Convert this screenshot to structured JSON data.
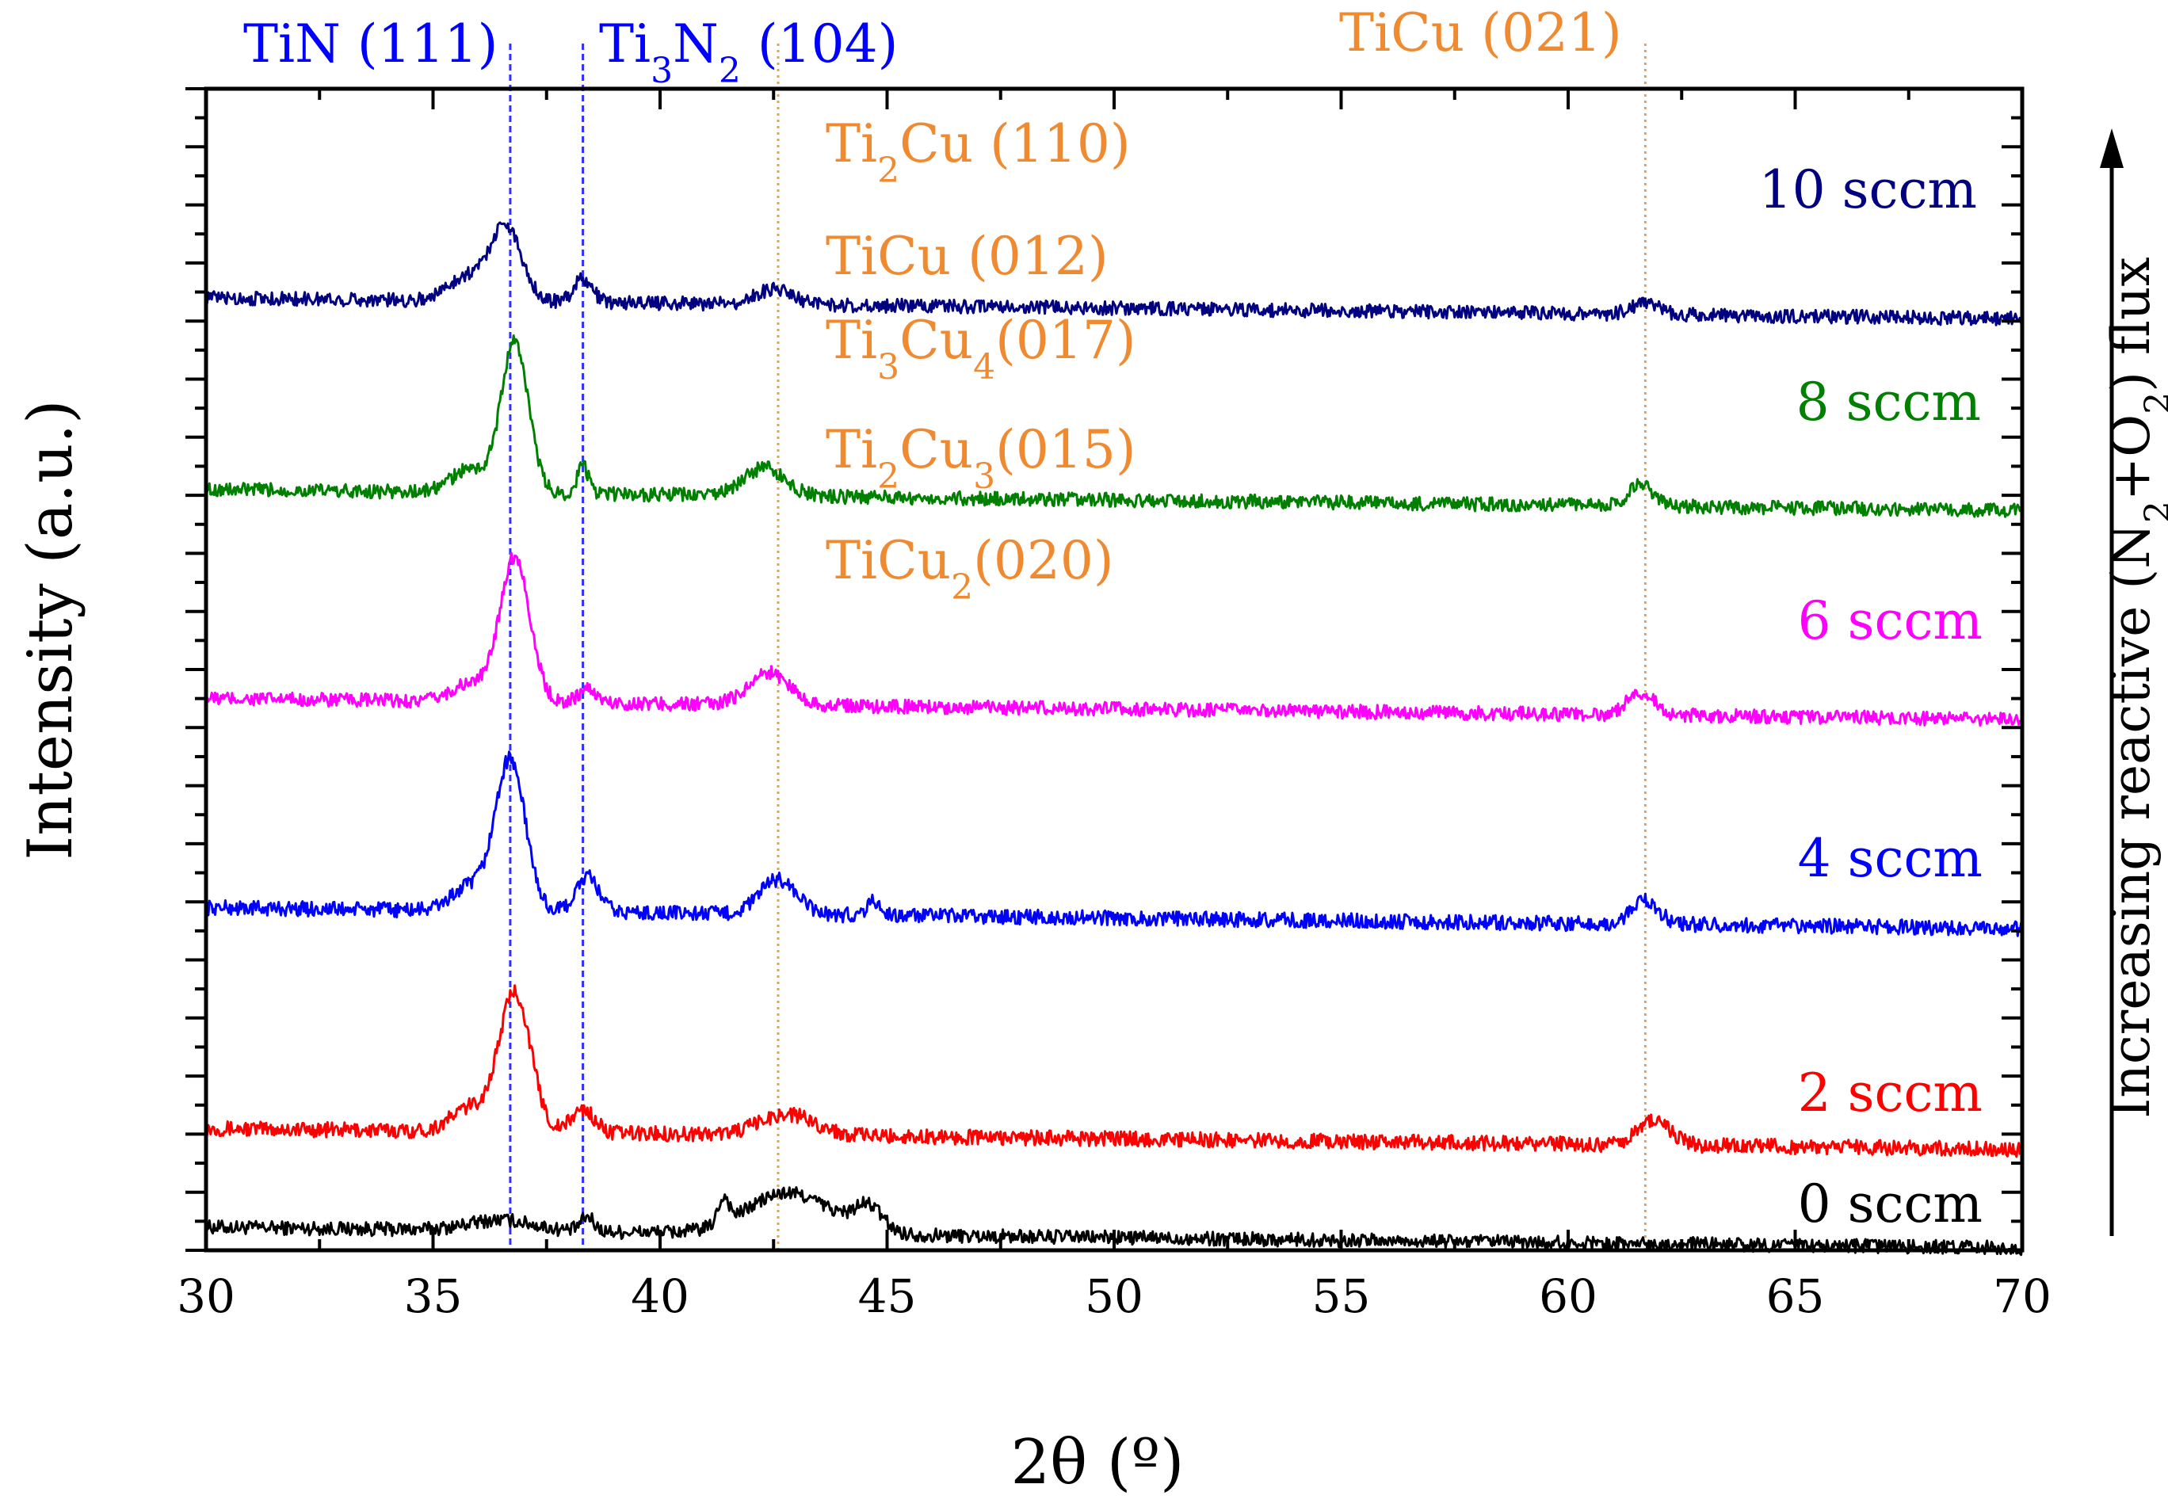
{
  "chart_data": {
    "type": "line",
    "title": "",
    "xlabel": "2θ (º)",
    "ylabel": "Intensity (a.u.)",
    "right_axis_label": {
      "prefix": "Increasing reactive (N",
      "sub1": "2",
      "mid": "+O",
      "sub2": "2",
      "suffix": ") flux"
    },
    "xlim": [
      30,
      70
    ],
    "ylim": [
      0,
      100
    ],
    "x_ticks": [
      "30",
      "35",
      "40",
      "45",
      "50",
      "55",
      "60",
      "65",
      "70"
    ],
    "series": [
      {
        "name": "0 sccm",
        "label": "0 sccm",
        "color": "#000000",
        "baseline": 2.0,
        "peaks": [
          [
            36.5,
            0.9,
            0.7
          ],
          [
            38.4,
            1.2,
            0.15
          ],
          [
            41.4,
            2.2,
            0.12
          ],
          [
            42.5,
            1.8,
            0.8
          ],
          [
            43.2,
            2.0,
            0.9
          ],
          [
            44.6,
            2.0,
            0.3
          ]
        ],
        "noise": 0.6
      },
      {
        "name": "2 sccm",
        "label": "2 sccm",
        "color": "#ff0000",
        "baseline": 10.5,
        "peaks": [
          [
            36.8,
            12.0,
            0.35
          ],
          [
            35.8,
            2.0,
            0.4
          ],
          [
            38.3,
            2.0,
            0.25
          ],
          [
            42.8,
            1.8,
            0.6
          ],
          [
            61.9,
            2.1,
            0.35
          ]
        ],
        "noise": 0.65
      },
      {
        "name": "4 sccm",
        "label": "4 sccm",
        "color": "#0000ff",
        "baseline": 29.5,
        "peaks": [
          [
            36.7,
            13.0,
            0.33
          ],
          [
            35.8,
            2.0,
            0.4
          ],
          [
            38.4,
            3.0,
            0.25
          ],
          [
            42.6,
            3.0,
            0.4
          ],
          [
            44.7,
            1.2,
            0.15
          ],
          [
            61.7,
            2.0,
            0.3
          ]
        ],
        "noise": 0.65
      },
      {
        "name": "6 sccm",
        "label": "6 sccm",
        "color": "#ff00ff",
        "baseline": 47.5,
        "peaks": [
          [
            36.8,
            12.5,
            0.33
          ],
          [
            35.8,
            1.5,
            0.4
          ],
          [
            38.4,
            1.2,
            0.2
          ],
          [
            42.4,
            2.8,
            0.45
          ],
          [
            61.6,
            2.0,
            0.3
          ]
        ],
        "noise": 0.6
      },
      {
        "name": "8 sccm",
        "label": "8 sccm",
        "color": "#008000",
        "baseline": 65.5,
        "peaks": [
          [
            36.8,
            13.0,
            0.3
          ],
          [
            35.8,
            2.0,
            0.4
          ],
          [
            38.3,
            2.5,
            0.12
          ],
          [
            42.3,
            2.4,
            0.45
          ],
          [
            61.6,
            2.0,
            0.25
          ]
        ],
        "noise": 0.6
      },
      {
        "name": "10 sccm",
        "label": "10 sccm",
        "color": "#000080",
        "baseline": 82.0,
        "peaks": [
          [
            36.6,
            6.5,
            0.35
          ],
          [
            35.7,
            2.0,
            0.4
          ],
          [
            38.3,
            2.0,
            0.2
          ],
          [
            42.5,
            1.3,
            0.4
          ],
          [
            61.7,
            1.0,
            0.3
          ]
        ],
        "noise": 0.6
      }
    ],
    "reference_lines": [
      {
        "x": 36.7,
        "color": "#3030ff",
        "style": "dash"
      },
      {
        "x": 38.3,
        "color": "#3030ff",
        "style": "dash"
      },
      {
        "x": 42.6,
        "color": "#f0a040",
        "style": "dot"
      },
      {
        "x": 61.7,
        "color": "#f0a040",
        "style": "dot"
      }
    ],
    "peak_labels": {
      "tin": {
        "text": "TiN (111)",
        "color": "#0000ff"
      },
      "ti3n2": {
        "main": "Ti",
        "s1": "3",
        "mid": "N",
        "s2": "2",
        "tail": " (104)",
        "color": "#0000ff"
      },
      "ticu021": {
        "text": "TiCu (021)",
        "color": "#f08a30"
      },
      "ti2cu110": {
        "main": "Ti",
        "s1": "2",
        "tail": "Cu (110)",
        "color": "#f08a30"
      },
      "ticu012": {
        "text": "TiCu (012)",
        "color": "#f08a30"
      },
      "ti3cu4": {
        "main": "Ti",
        "s1": "3",
        "mid": "Cu",
        "s2": "4",
        "tail": "(017)",
        "color": "#f08a30"
      },
      "ti2cu3": {
        "main": "Ti",
        "s1": "2",
        "mid": "Cu",
        "s2": "3",
        "tail": "(015)",
        "color": "#f08a30"
      },
      "ticu2": {
        "main": "TiCu",
        "s1": "2",
        "tail": "(020)",
        "color": "#f08a30"
      }
    }
  }
}
